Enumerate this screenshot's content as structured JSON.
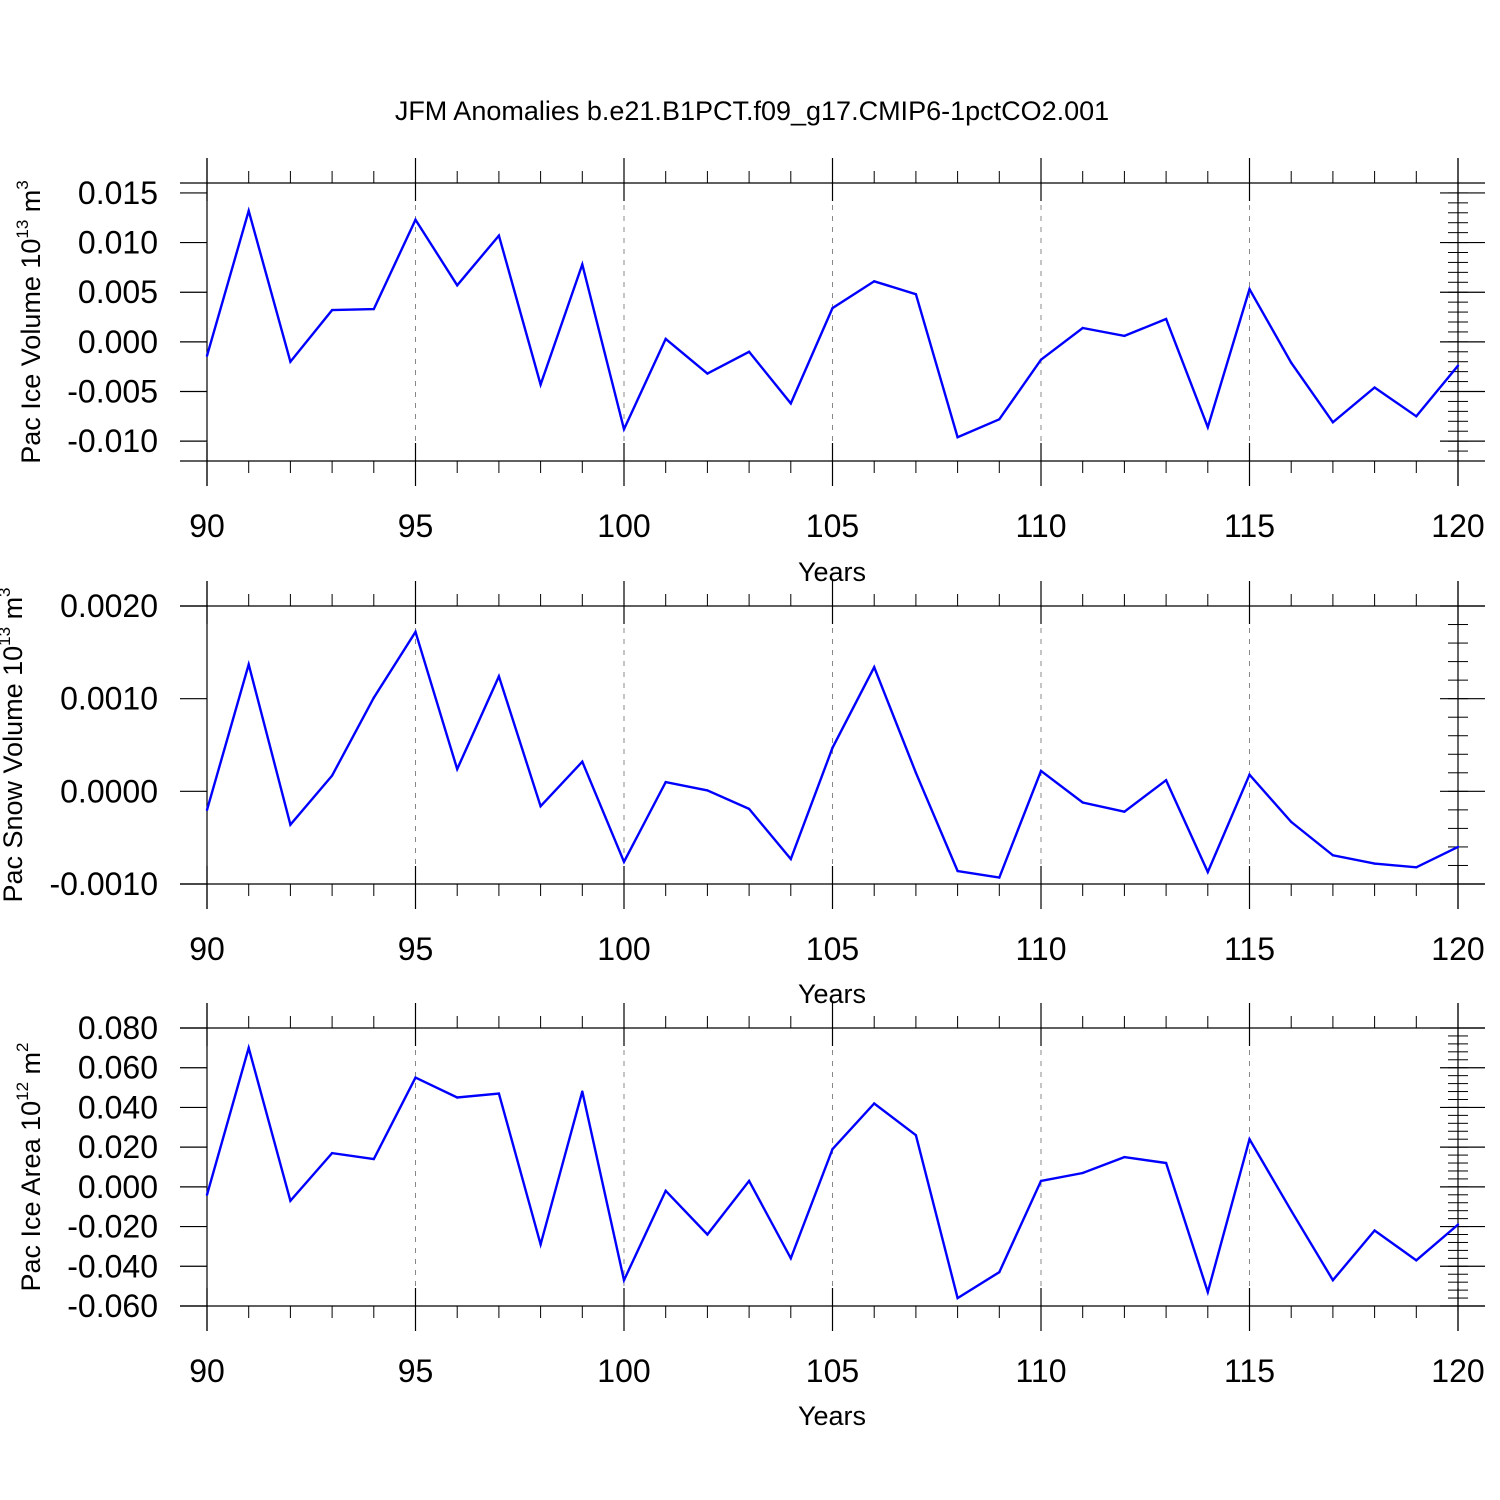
{
  "figure": {
    "title": "JFM Anomalies b.e21.B1PCT.f09_g17.CMIP6-1pctCO2.001",
    "line_color": "#0000ff",
    "grid_color": "#888888"
  },
  "chart_data": [
    {
      "type": "line",
      "xlabel": "Years",
      "ylabel": {
        "text": "Pac Ice Volume 10",
        "exp": "13",
        "unit": " m",
        "unit_exp": "3"
      },
      "xlim": [
        90,
        120
      ],
      "ylim": [
        -0.012,
        0.016
      ],
      "xticks": [
        90,
        95,
        100,
        105,
        110,
        115,
        120
      ],
      "xtick_labels": [
        "90",
        "95",
        "100",
        "105",
        "110",
        "115",
        "120"
      ],
      "yticks": [
        -0.01,
        -0.005,
        0.0,
        0.005,
        0.01,
        0.015
      ],
      "ytick_labels": [
        "-0.010",
        "-0.005",
        "0.000",
        "0.005",
        "0.010",
        "0.015"
      ],
      "grid": "vertical dashed at major x ticks",
      "series": [
        {
          "x": [
            90,
            91,
            92,
            93,
            94,
            95,
            96,
            97,
            98,
            99,
            100,
            101,
            102,
            103,
            104,
            105,
            106,
            107,
            108,
            109,
            110,
            111,
            112,
            113,
            114,
            115,
            116,
            117,
            118,
            119,
            120
          ],
          "values": [
            -0.0014,
            0.0132,
            -0.002,
            0.0032,
            0.0033,
            0.0123,
            0.0057,
            0.0107,
            -0.0043,
            0.0078,
            -0.0088,
            0.0003,
            -0.0032,
            -0.001,
            -0.0062,
            0.0034,
            0.0061,
            0.0048,
            -0.0096,
            -0.0078,
            -0.0018,
            0.0014,
            0.0006,
            0.0023,
            -0.0086,
            0.0053,
            -0.0021,
            -0.0081,
            -0.0046,
            -0.0075,
            -0.0024
          ]
        }
      ]
    },
    {
      "type": "line",
      "xlabel": "Years",
      "ylabel": {
        "text": "Pac Snow Volume 10",
        "exp": "13",
        "unit": " m",
        "unit_exp": "3"
      },
      "xlim": [
        90,
        120
      ],
      "ylim": [
        -0.001,
        0.002
      ],
      "xticks": [
        90,
        95,
        100,
        105,
        110,
        115,
        120
      ],
      "xtick_labels": [
        "90",
        "95",
        "100",
        "105",
        "110",
        "115",
        "120"
      ],
      "yticks": [
        -0.001,
        0.0,
        0.001,
        0.002
      ],
      "ytick_labels": [
        "-0.0010",
        "0.0000",
        "0.0010",
        "0.0020"
      ],
      "grid": "vertical dashed at major x ticks",
      "series": [
        {
          "x": [
            90,
            91,
            92,
            93,
            94,
            95,
            96,
            97,
            98,
            99,
            100,
            101,
            102,
            103,
            104,
            105,
            106,
            107,
            108,
            109,
            110,
            111,
            112,
            113,
            114,
            115,
            116,
            117,
            118,
            119,
            120
          ],
          "values": [
            -0.0002,
            0.00137,
            -0.00036,
            0.00017,
            0.00101,
            0.00172,
            0.00024,
            0.00124,
            -0.00016,
            0.00032,
            -0.00076,
            0.0001,
            1e-05,
            -0.00019,
            -0.00073,
            0.00047,
            0.00134,
            0.0002,
            -0.00086,
            -0.00093,
            0.00022,
            -0.00012,
            -0.00022,
            0.00012,
            -0.00087,
            0.00018,
            -0.00033,
            -0.00069,
            -0.00078,
            -0.00082,
            -0.0006
          ]
        }
      ]
    },
    {
      "type": "line",
      "xlabel": "Years",
      "ylabel": {
        "text": "Pac Ice Area 10",
        "exp": "12",
        "unit": " m",
        "unit_exp": "2"
      },
      "xlim": [
        90,
        120
      ],
      "ylim": [
        -0.06,
        0.08
      ],
      "xticks": [
        90,
        95,
        100,
        105,
        110,
        115,
        120
      ],
      "xtick_labels": [
        "90",
        "95",
        "100",
        "105",
        "110",
        "115",
        "120"
      ],
      "yticks": [
        -0.06,
        -0.04,
        -0.02,
        0.0,
        0.02,
        0.04,
        0.06,
        0.08
      ],
      "ytick_labels": [
        "-0.060",
        "-0.040",
        "-0.020",
        "0.000",
        "0.020",
        "0.040",
        "0.060",
        "0.080"
      ],
      "grid": "vertical dashed at major x ticks",
      "series": [
        {
          "x": [
            90,
            91,
            92,
            93,
            94,
            95,
            96,
            97,
            98,
            99,
            100,
            101,
            102,
            103,
            104,
            105,
            106,
            107,
            108,
            109,
            110,
            111,
            112,
            113,
            114,
            115,
            116,
            117,
            118,
            119,
            120
          ],
          "values": [
            -0.004,
            0.07,
            -0.007,
            0.017,
            0.014,
            0.055,
            0.045,
            0.047,
            -0.029,
            0.048,
            -0.047,
            -0.002,
            -0.024,
            0.003,
            -0.036,
            0.019,
            0.042,
            0.026,
            -0.056,
            -0.043,
            0.003,
            0.007,
            0.015,
            0.012,
            -0.053,
            0.024,
            -0.012,
            -0.047,
            -0.022,
            -0.037,
            -0.019
          ]
        }
      ]
    }
  ]
}
